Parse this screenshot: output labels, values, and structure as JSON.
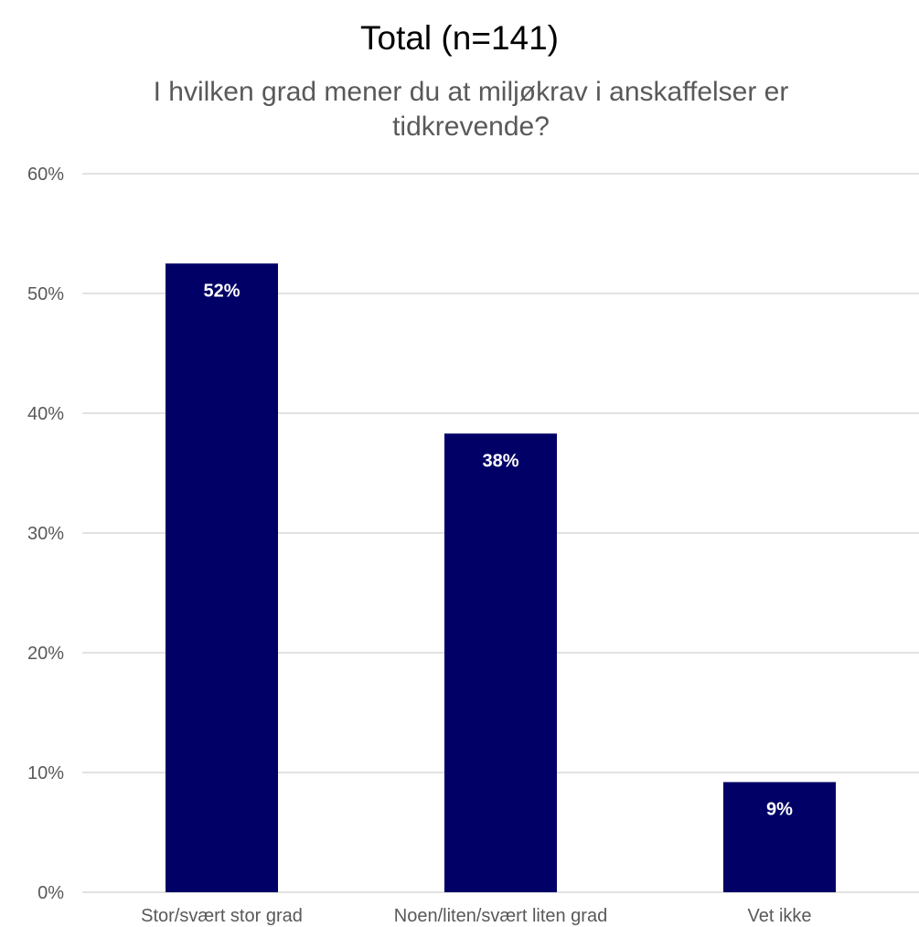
{
  "chart_data": {
    "type": "bar",
    "title": "Total (n=141)",
    "subtitle": "I hvilken grad mener du at miljøkrav i anskaffelser er tidkrevende?",
    "categories": [
      "Stor/svært stor grad",
      "Noen/liten/svært liten grad",
      "Vet ikke"
    ],
    "values": [
      52.5,
      38.3,
      9.2
    ],
    "data_labels": [
      "52%",
      "38%",
      "9%"
    ],
    "ylim": [
      0,
      60
    ],
    "yticks": [
      0,
      10,
      20,
      30,
      40,
      50,
      60
    ],
    "ytick_labels": [
      "0%",
      "10%",
      "20%",
      "30%",
      "40%",
      "50%",
      "60%"
    ],
    "xlabel": "",
    "ylabel": "",
    "grid": true,
    "legend": "none",
    "bar_color": "#000066",
    "grid_color": "#d9d9d9"
  }
}
